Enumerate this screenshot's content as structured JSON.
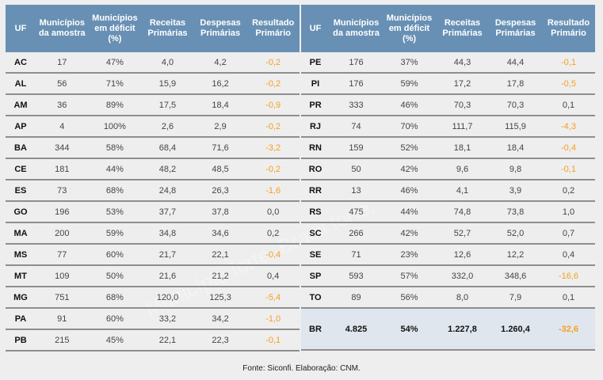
{
  "headers": [
    "UF",
    "Municípios da amostra",
    "Municípios em déficit (%)",
    "Receitas Primárias",
    "Despesas Primárias",
    "Resultado Primário"
  ],
  "left_rows": [
    [
      "AC",
      "17",
      "47%",
      "4,0",
      "4,2",
      "-0,2"
    ],
    [
      "AL",
      "56",
      "71%",
      "15,9",
      "16,2",
      "-0,2"
    ],
    [
      "AM",
      "36",
      "89%",
      "17,5",
      "18,4",
      "-0,9"
    ],
    [
      "AP",
      "4",
      "100%",
      "2,6",
      "2,9",
      "-0,2"
    ],
    [
      "BA",
      "344",
      "58%",
      "68,4",
      "71,6",
      "-3,2"
    ],
    [
      "CE",
      "181",
      "44%",
      "48,2",
      "48,5",
      "-0,2"
    ],
    [
      "ES",
      "73",
      "68%",
      "24,8",
      "26,3",
      "-1,6"
    ],
    [
      "GO",
      "196",
      "53%",
      "37,7",
      "37,8",
      "0,0"
    ],
    [
      "MA",
      "200",
      "59%",
      "34,8",
      "34,6",
      "0,2"
    ],
    [
      "MS",
      "77",
      "60%",
      "21,7",
      "22,1",
      "-0,4"
    ],
    [
      "MT",
      "109",
      "50%",
      "21,6",
      "21,2",
      "0,4"
    ],
    [
      "MG",
      "751",
      "68%",
      "120,0",
      "125,3",
      "-5,4"
    ],
    [
      "PA",
      "91",
      "60%",
      "33,2",
      "34,2",
      "-1,0"
    ],
    [
      "PB",
      "215",
      "45%",
      "22,1",
      "22,3",
      "-0,1"
    ]
  ],
  "right_rows": [
    [
      "PE",
      "176",
      "37%",
      "44,3",
      "44,4",
      "-0,1"
    ],
    [
      "PI",
      "176",
      "59%",
      "17,2",
      "17,8",
      "-0,5"
    ],
    [
      "PR",
      "333",
      "46%",
      "70,3",
      "70,3",
      "0,1"
    ],
    [
      "RJ",
      "74",
      "70%",
      "111,7",
      "115,9",
      "-4,3"
    ],
    [
      "RN",
      "159",
      "52%",
      "18,1",
      "18,4",
      "-0,4"
    ],
    [
      "RO",
      "50",
      "42%",
      "9,6",
      "9,8",
      "-0,1"
    ],
    [
      "RR",
      "13",
      "46%",
      "4,1",
      "3,9",
      "0,2"
    ],
    [
      "RS",
      "475",
      "44%",
      "74,8",
      "73,8",
      "1,0"
    ],
    [
      "SC",
      "266",
      "42%",
      "52,7",
      "52,0",
      "0,7"
    ],
    [
      "SE",
      "71",
      "23%",
      "12,6",
      "12,2",
      "0,4"
    ],
    [
      "SP",
      "593",
      "57%",
      "332,0",
      "348,6",
      "-16,6"
    ],
    [
      "TO",
      "89",
      "56%",
      "8,0",
      "7,9",
      "0,1"
    ]
  ],
  "total_row": [
    "BR",
    "4.825",
    "54%",
    "1.227,8",
    "1.260,4",
    "-32,6"
  ],
  "footer": "Fonte: Siconfi. Elaboração: CNM.",
  "watermark": "Município forte. Brasil forte.",
  "colors": {
    "header_bg": "#6890b4",
    "negative": "#f5a020",
    "total_bg": "#dfe6ee"
  }
}
